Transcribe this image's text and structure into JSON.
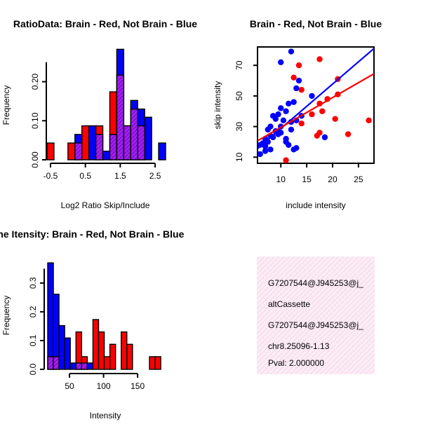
{
  "chart_data": [
    {
      "type": "histogram",
      "title": "RatioData: Brain - Red, Not Brain - Blue",
      "xlabel": "Log2 Ratio Skip/Include",
      "ylabel": "Frequency",
      "xlim": [
        -0.6,
        2.8
      ],
      "ylim": [
        0,
        0.28
      ],
      "xticks": [
        "-0.5",
        "0.5",
        "1.5",
        "2.5"
      ],
      "xtick_values": [
        -0.5,
        0.5,
        1.5,
        2.5
      ],
      "yticks": [
        "0.00",
        "0.10",
        "0.20"
      ],
      "ytick_values": [
        0,
        0.1,
        0.2
      ],
      "bin_width": 0.2,
      "bin_starts": [
        -0.6,
        -0.4,
        -0.2,
        0.0,
        0.2,
        0.4,
        0.6,
        0.8,
        1.0,
        1.2,
        1.4,
        1.6,
        1.8,
        2.0,
        2.2,
        2.4,
        2.6
      ],
      "series": [
        {
          "name": "Brain",
          "color": "#ff0000",
          "values": [
            0.043,
            0,
            0,
            0.043,
            0.043,
            0.087,
            0,
            0.087,
            0,
            0.174,
            0.217,
            0.087,
            0.13,
            0.087,
            0,
            0,
            0
          ]
        },
        {
          "name": "Not Brain",
          "color": "#0000ff",
          "values": [
            0,
            0,
            0,
            0,
            0.065,
            0,
            0.087,
            0.065,
            0.022,
            0.065,
            0.283,
            0.087,
            0.152,
            0.13,
            0.109,
            0,
            0.043
          ]
        }
      ],
      "overlap_color": "#a020f0"
    },
    {
      "type": "scatter",
      "title": "Brain - Red, Not Brain - Blue",
      "xlabel": "include intensity",
      "ylabel": "skip intensity",
      "xlim": [
        5.5,
        28
      ],
      "ylim": [
        6,
        82
      ],
      "xticks": [
        "10",
        "15",
        "20",
        "25"
      ],
      "xtick_values": [
        10,
        15,
        20,
        25
      ],
      "yticks": [
        "10",
        "30",
        "50",
        "70"
      ],
      "ytick_values": [
        10,
        30,
        50,
        70
      ],
      "series": [
        {
          "name": "Brain",
          "color": "#ff0000",
          "points": [
            [
              17.5,
              74
            ],
            [
              12.5,
              62
            ],
            [
              13.5,
              70
            ],
            [
              14,
              54
            ],
            [
              16,
              38
            ],
            [
              17.5,
              45
            ],
            [
              18,
              40
            ],
            [
              19,
              48
            ],
            [
              21,
              51
            ],
            [
              21,
              61
            ],
            [
              20.5,
              35
            ],
            [
              23,
              25
            ],
            [
              27,
              34
            ],
            [
              17.5,
              26
            ],
            [
              17,
              24
            ],
            [
              14,
              32
            ],
            [
              11,
              8
            ]
          ],
          "fit": {
            "x": [
              5.5,
              28
            ],
            "y": [
              20.7,
              64.5
            ]
          }
        },
        {
          "name": "Not Brain",
          "color": "#0000ff",
          "points": [
            [
              12,
              79
            ],
            [
              10,
              72
            ],
            [
              13,
              55
            ],
            [
              13.5,
              60
            ],
            [
              16,
              50
            ],
            [
              14,
              37
            ],
            [
              12.5,
              46
            ],
            [
              11.5,
              45
            ],
            [
              10,
              42
            ],
            [
              11,
              40
            ],
            [
              9.5,
              38
            ],
            [
              9,
              35
            ],
            [
              8.5,
              37
            ],
            [
              10.5,
              34
            ],
            [
              8,
              30
            ],
            [
              7.5,
              28
            ],
            [
              9,
              27
            ],
            [
              10,
              26
            ],
            [
              9.5,
              25
            ],
            [
              8,
              24
            ],
            [
              8.5,
              23
            ],
            [
              7,
              22
            ],
            [
              7.5,
              20
            ],
            [
              6.5,
              19
            ],
            [
              7,
              17
            ],
            [
              6,
              18
            ],
            [
              8,
              15
            ],
            [
              7,
              14
            ],
            [
              6,
              12
            ],
            [
              11,
              20
            ],
            [
              11.5,
              18
            ],
            [
              12.5,
              15
            ],
            [
              13,
              16
            ],
            [
              11,
              22
            ],
            [
              10,
              30
            ],
            [
              12,
              33
            ],
            [
              13,
              34
            ],
            [
              12,
              28
            ],
            [
              18.5,
              23
            ]
          ],
          "fit": {
            "x": [
              5.5,
              28
            ],
            "y": [
              15.6,
              81
            ]
          }
        }
      ]
    },
    {
      "type": "histogram",
      "title": "Gene Itensity: Brain - Red, Not Brain - Blue",
      "xlabel": "Intensity",
      "ylabel": "Frequency",
      "xlim": [
        18,
        188
      ],
      "ylim": [
        0,
        0.38
      ],
      "xticks": [
        "50",
        "100",
        "150"
      ],
      "xtick_values": [
        50,
        100,
        150
      ],
      "yticks": [
        "0.0",
        "0.1",
        "0.2",
        "0.3"
      ],
      "ytick_values": [
        0,
        0.1,
        0.2,
        0.3
      ],
      "bin_width": 8.3,
      "bin_starts": [
        18,
        26.3,
        34.6,
        42.9,
        51.2,
        59.5,
        67.8,
        76.1,
        84.4,
        92.7,
        101,
        109.3,
        117.6,
        125.9,
        134.2,
        142.5,
        150.8,
        159.1,
        167.4,
        175.7
      ],
      "series": [
        {
          "name": "Brain",
          "color": "#ff0000",
          "values": [
            0.044,
            0.044,
            0,
            0,
            0,
            0.13,
            0.044,
            0,
            0.173,
            0.13,
            0.044,
            0.087,
            0,
            0.13,
            0.087,
            0,
            0,
            0,
            0.044,
            0.044
          ]
        },
        {
          "name": "Not Brain",
          "color": "#0000ff",
          "values": [
            0.37,
            0.261,
            0.152,
            0.109,
            0.022,
            0.022,
            0.022,
            0.022,
            0,
            0,
            0,
            0,
            0,
            0,
            0,
            0,
            0,
            0,
            0,
            0
          ]
        }
      ],
      "overlap_color": "#a020f0"
    }
  ],
  "info_panel": {
    "lines": [
      "G7207544@J945253@j_",
      "altCassette",
      "G7207544@J945253@j_",
      "chr8.25096-1.13"
    ],
    "pval": "Pval: 2.000000",
    "pval_color": "#c00000",
    "background": "#f9e3f0"
  }
}
